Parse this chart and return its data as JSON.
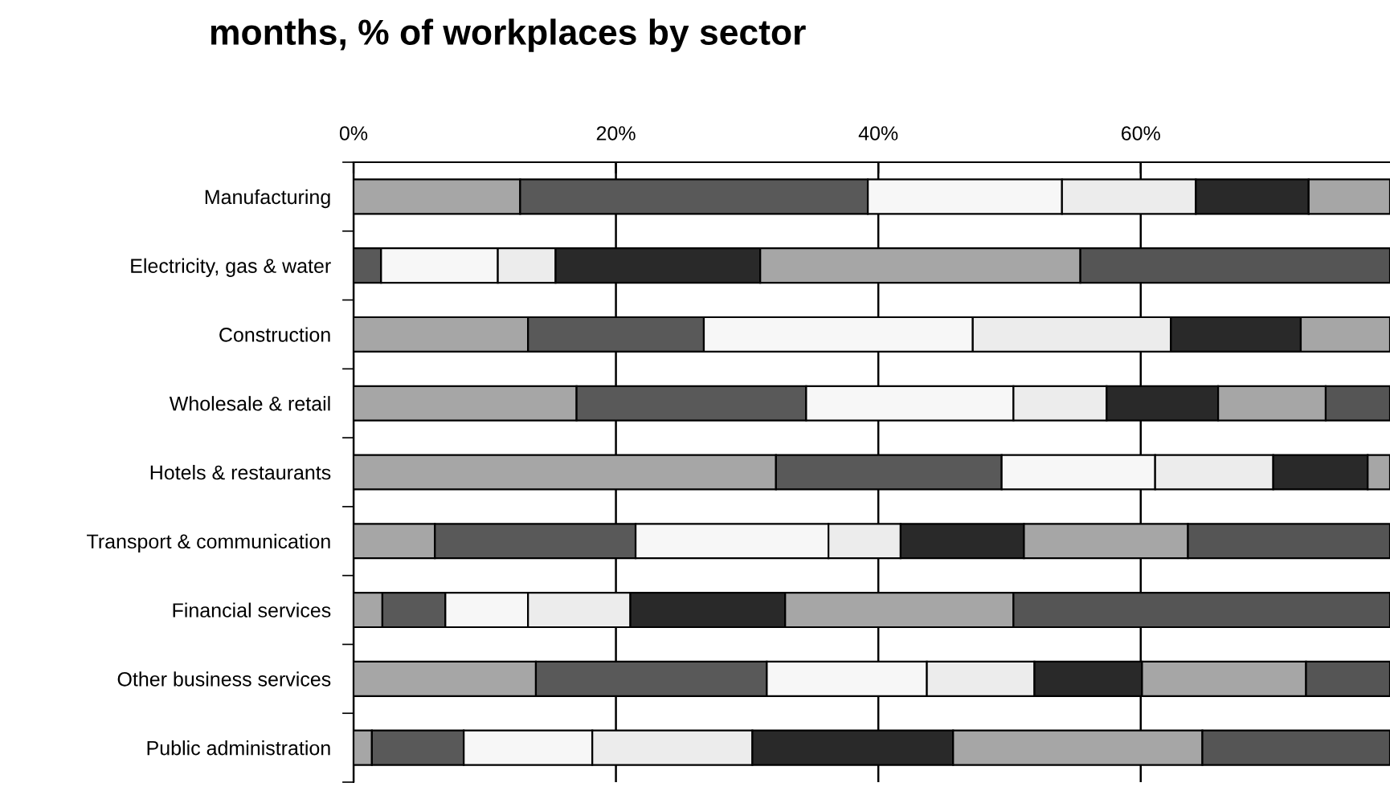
{
  "chart_data": {
    "type": "bar",
    "orientation": "horizontal",
    "stacked": true,
    "title": "months, % of workplaces by sector",
    "categories": [
      "Manufacturing",
      "Electricity, gas & water",
      "Construction",
      "Wholesale & retail",
      "Hotels & restaurants",
      "Transport & communication",
      "Financial services",
      "Other business services",
      "Public administration"
    ],
    "series": [
      {
        "color": "#a6a6a6",
        "values": [
          12.7,
          0,
          13.3,
          17.0,
          32.2,
          6.2,
          2.2,
          13.9,
          1.4
        ]
      },
      {
        "color": "#595959",
        "values": [
          26.5,
          2.1,
          13.4,
          17.5,
          17.2,
          15.3,
          4.8,
          17.6,
          7.0
        ]
      },
      {
        "color": "#f7f7f7",
        "values": [
          14.8,
          8.9,
          20.5,
          15.8,
          11.7,
          14.7,
          6.3,
          12.2,
          9.8
        ]
      },
      {
        "color": "#ececec",
        "values": [
          10.2,
          4.4,
          15.1,
          7.1,
          9.0,
          5.5,
          7.8,
          8.2,
          12.2
        ]
      },
      {
        "color": "#292929",
        "values": [
          8.6,
          15.6,
          9.9,
          8.5,
          7.2,
          9.4,
          11.8,
          8.2,
          15.3
        ]
      },
      {
        "color": "#a6a6a6",
        "values": [
          6.2,
          24.4,
          6.8,
          8.2,
          1.7,
          12.5,
          17.4,
          12.5,
          19.0
        ]
      },
      {
        "color": "#555555",
        "values": [
          0,
          23.6,
          0,
          4.9,
          0,
          15.4,
          28.7,
          6.4,
          14.3
        ]
      }
    ],
    "xlim": [
      0,
      79
    ],
    "xticks": [
      {
        "value": 0,
        "label": "0%"
      },
      {
        "value": 20,
        "label": "20%"
      },
      {
        "value": 40,
        "label": "40%"
      },
      {
        "value": 60,
        "label": "60%"
      }
    ],
    "grid": "x",
    "legend": false
  }
}
